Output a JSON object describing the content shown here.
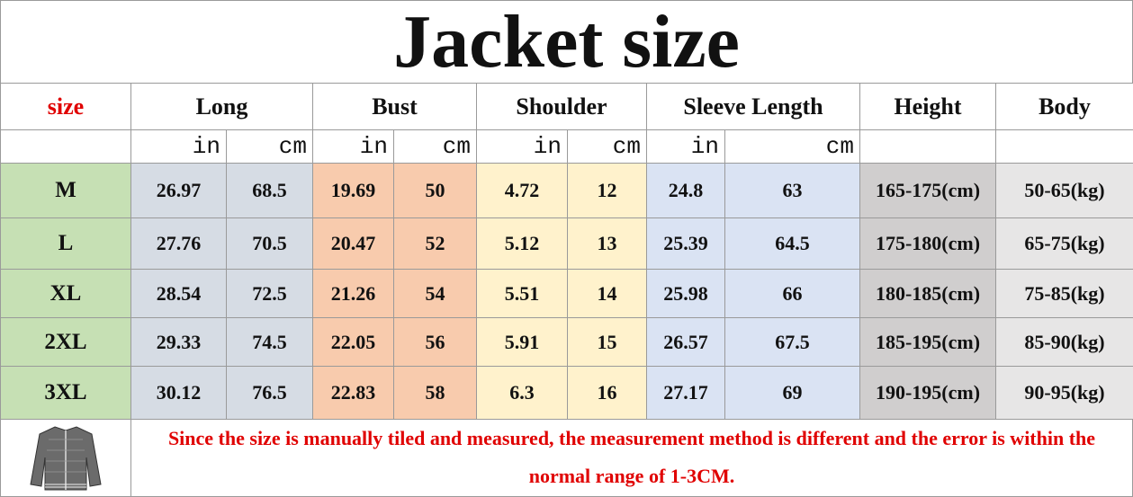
{
  "title": "Jacket size",
  "header": [
    "size",
    "Long",
    "Bust",
    "Shoulder",
    "Sleeve Length",
    "Height",
    "Body"
  ],
  "units": [
    "in",
    "cm",
    "in",
    "cm",
    "in",
    "cm",
    "in",
    "cm"
  ],
  "rows": [
    [
      "M",
      26.97,
      68.5,
      19.69,
      50,
      4.72,
      12,
      24.8,
      63,
      "165-175(cm)",
      "50-65(kg)"
    ],
    [
      "L",
      27.76,
      70.5,
      20.47,
      52,
      5.12,
      13,
      25.39,
      64.5,
      "175-180(cm)",
      "65-75(kg)"
    ],
    [
      "XL",
      28.54,
      72.5,
      21.26,
      54,
      5.51,
      14,
      25.98,
      66,
      "180-185(cm)",
      "75-85(kg)"
    ],
    [
      "2XL",
      29.33,
      74.5,
      22.05,
      56,
      5.91,
      15,
      26.57,
      67.5,
      "185-195(cm)",
      "85-90(kg)"
    ],
    [
      "3XL",
      30.12,
      76.5,
      22.83,
      58,
      6.3,
      16,
      27.17,
      69,
      "190-195(cm)",
      "90-95(kg)"
    ]
  ],
  "note": "Since the size is manually tiled and measured, the measurement method is different and the error is within the normal range of 1-3CM."
}
